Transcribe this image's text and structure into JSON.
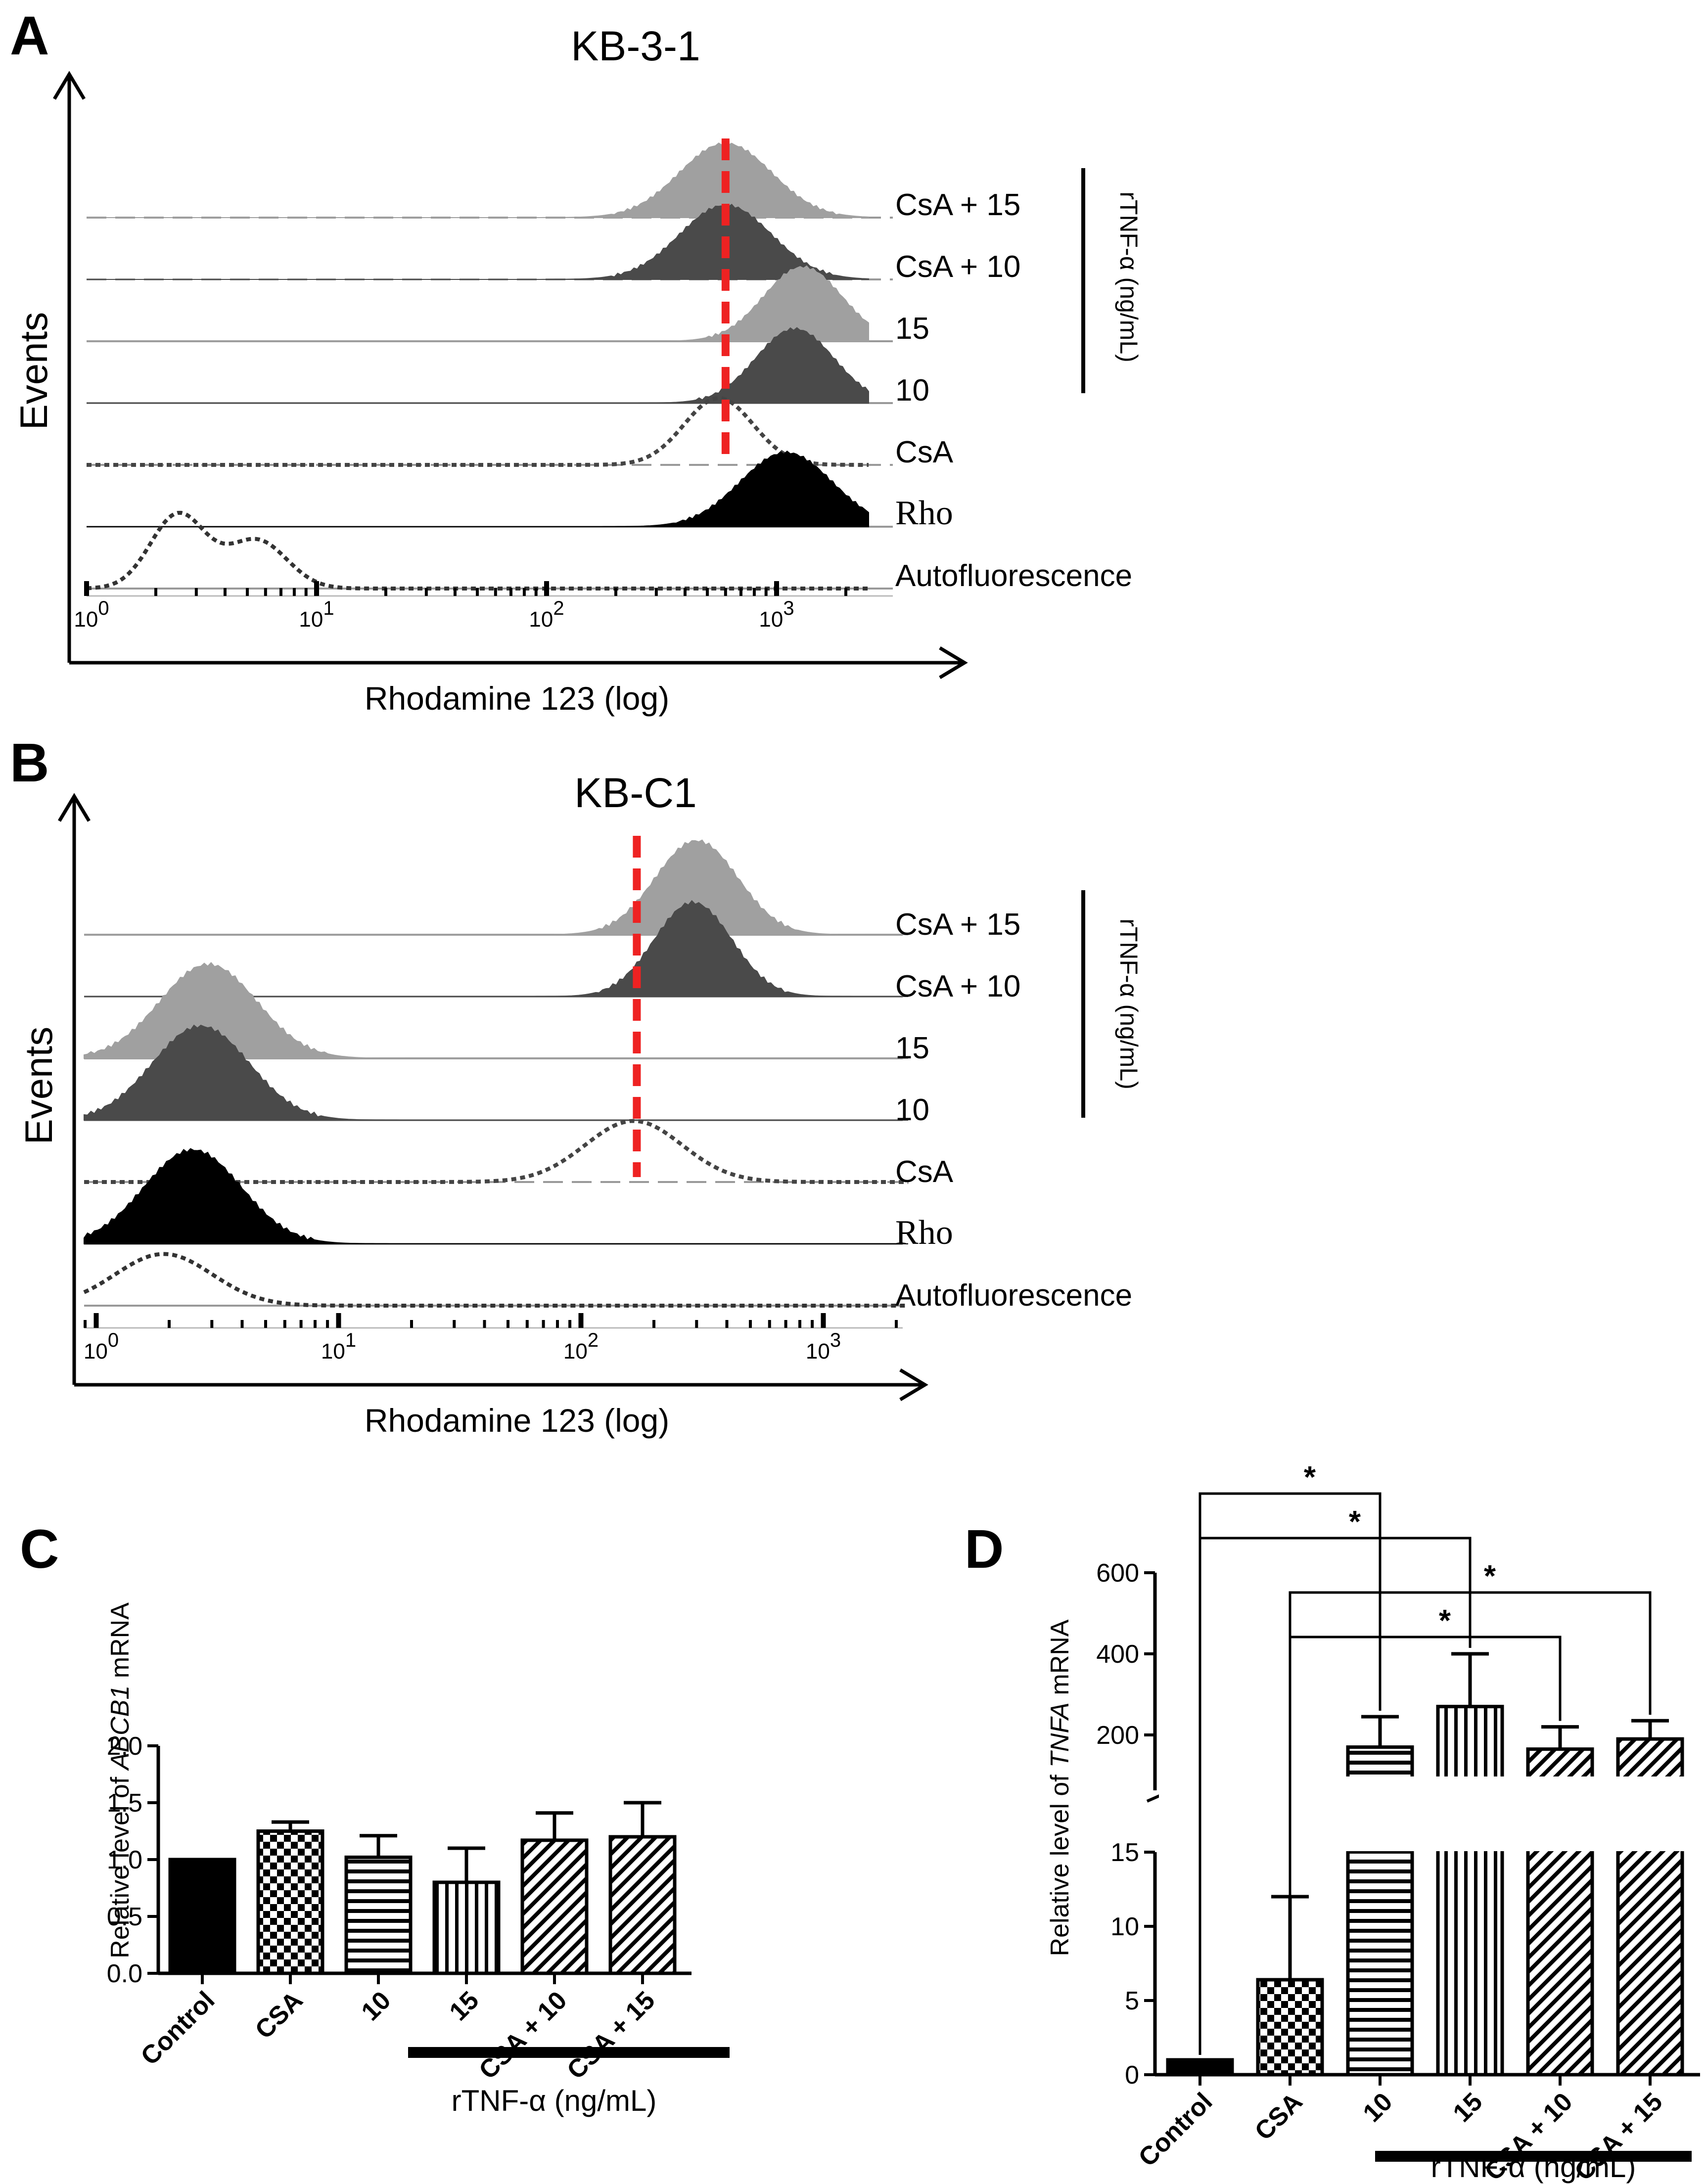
{
  "chart_data": [
    {
      "panel": "A",
      "type": "histogram",
      "title": "KB-3-1",
      "ylabel": "Events",
      "xlabel": "Rhodamine 123 (log)",
      "x_ticks": [
        {
          "base": "10",
          "exp": "0",
          "value": 1
        },
        {
          "base": "10",
          "exp": "1",
          "value": 10
        },
        {
          "base": "10",
          "exp": "2",
          "value": 100
        },
        {
          "base": "10",
          "exp": "3",
          "value": 1000
        }
      ],
      "reference_line_value": 600,
      "reference_color": "#ee2222",
      "group_label": "rTNF-α (ng/mL)",
      "traces": [
        {
          "label": "CsA + 15",
          "style": "fill",
          "color": "#a0a0a0",
          "baseline_dash": true,
          "peaks": [
            {
              "center": 600,
              "width": 0.2,
              "height": 1.0
            }
          ]
        },
        {
          "label": "CsA + 10",
          "style": "fill",
          "color": "#4a4a4a",
          "baseline_dash": true,
          "peaks": [
            {
              "center": 600,
              "width": 0.2,
              "height": 1.0
            }
          ]
        },
        {
          "label": "15",
          "style": "fill",
          "color": "#a0a0a0",
          "baseline_dash": false,
          "peaks": [
            {
              "center": 1300,
              "width": 0.17,
              "height": 1.0
            }
          ]
        },
        {
          "label": "10",
          "style": "fill",
          "color": "#4a4a4a",
          "baseline_dash": false,
          "peaks": [
            {
              "center": 1200,
              "width": 0.17,
              "height": 1.0
            }
          ]
        },
        {
          "label": "CsA",
          "style": "dotted",
          "color": "#444444",
          "baseline_dash": true,
          "peaks": [
            {
              "center": 560,
              "width": 0.15,
              "height": 0.9
            }
          ]
        },
        {
          "label": "Rho",
          "style": "fill",
          "color": "#000000",
          "baseline_dash": false,
          "serif": true,
          "peaks": [
            {
              "center": 1100,
              "width": 0.2,
              "height": 1.0
            }
          ]
        },
        {
          "label": "Autofluorescence",
          "style": "dotted",
          "color": "#333333",
          "baseline_dash": false,
          "peaks": [
            {
              "center": 2.5,
              "width": 0.12,
              "height": 1.0
            },
            {
              "center": 5.5,
              "width": 0.13,
              "height": 0.65
            }
          ]
        }
      ]
    },
    {
      "panel": "B",
      "type": "histogram",
      "title": "KB-C1",
      "ylabel": "Events",
      "xlabel": "Rhodamine 123 (log)",
      "x_ticks": [
        {
          "base": "10",
          "exp": "0",
          "value": 1
        },
        {
          "base": "10",
          "exp": "1",
          "value": 10
        },
        {
          "base": "10",
          "exp": "2",
          "value": 100
        },
        {
          "base": "10",
          "exp": "3",
          "value": 1000
        }
      ],
      "reference_line_value": 170,
      "reference_color": "#ee2222",
      "group_label": "rTNF-α (ng/mL)",
      "traces": [
        {
          "label": "CsA + 15",
          "style": "fill",
          "color": "#a0a0a0",
          "baseline_dash": false,
          "peaks": [
            {
              "center": 300,
              "width": 0.17,
              "height": 1.0
            }
          ]
        },
        {
          "label": "CsA + 10",
          "style": "fill",
          "color": "#4a4a4a",
          "baseline_dash": false,
          "peaks": [
            {
              "center": 290,
              "width": 0.16,
              "height": 1.0
            }
          ]
        },
        {
          "label": "15",
          "style": "fill",
          "color": "#a0a0a0",
          "baseline_dash": false,
          "peaks": [
            {
              "center": 2.9,
              "width": 0.2,
              "height": 1.0
            }
          ]
        },
        {
          "label": "10",
          "style": "fill",
          "color": "#4a4a4a",
          "baseline_dash": false,
          "peaks": [
            {
              "center": 2.7,
              "width": 0.2,
              "height": 1.0
            }
          ]
        },
        {
          "label": "CsA",
          "style": "dotted",
          "color": "#444444",
          "baseline_dash": true,
          "peaks": [
            {
              "center": 165,
              "width": 0.2,
              "height": 0.65
            }
          ]
        },
        {
          "label": "Rho",
          "style": "fill",
          "color": "#000000",
          "baseline_dash": false,
          "serif": true,
          "peaks": [
            {
              "center": 2.5,
              "width": 0.2,
              "height": 1.0
            }
          ]
        },
        {
          "label": "Autofluorescence",
          "style": "dotted",
          "color": "#333333",
          "baseline_dash": false,
          "peaks": [
            {
              "center": 1.9,
              "width": 0.2,
              "height": 0.55
            }
          ]
        }
      ]
    },
    {
      "panel": "C",
      "type": "bar",
      "ylabel_pre": "Relative level of ",
      "ylabel_gene": "ABCB1",
      "ylabel_post": " mRNA",
      "ylim": [
        0,
        2.0
      ],
      "y_ticks": [
        "0.0",
        "0.5",
        "1.0",
        "1.5",
        "2.0"
      ],
      "categories": [
        "Control",
        "CSA",
        "10",
        "15",
        "CSA + 10",
        "CSA + 15"
      ],
      "values": [
        1.0,
        1.25,
        1.02,
        0.8,
        1.17,
        1.2
      ],
      "errors": [
        0,
        0.08,
        0.19,
        0.3,
        0.24,
        0.3
      ],
      "patterns": [
        "solid",
        "checker",
        "hlines",
        "vlines",
        "diag",
        "diag"
      ],
      "group_label": "rTNF-α (ng/mL)"
    },
    {
      "panel": "D",
      "type": "bar",
      "ylabel_pre": "Relative level of ",
      "ylabel_gene": "TNFA",
      "ylabel_post": " mRNA",
      "broken_axis": true,
      "lower_range": [
        0,
        15
      ],
      "upper_range": [
        100,
        600
      ],
      "lower_ticks": [
        "0",
        "5",
        "10",
        "15"
      ],
      "upper_ticks": [
        "200",
        "400",
        "600"
      ],
      "categories": [
        "Control",
        "CSA",
        "10",
        "15",
        "CSA + 10",
        "CSA + 15"
      ],
      "values": [
        1.0,
        6.4,
        170,
        270,
        165,
        190
      ],
      "errors": [
        0,
        5.6,
        75,
        130,
        55,
        45
      ],
      "patterns": [
        "solid",
        "checker",
        "hlines",
        "vlines",
        "diag",
        "diag"
      ],
      "significance": [
        {
          "from": "Control",
          "to": "10",
          "label": "*"
        },
        {
          "from": "Control",
          "to": "15",
          "label": "*"
        },
        {
          "from": "CSA",
          "to": "CSA + 15",
          "label": "*"
        },
        {
          "from": "CSA",
          "to": "CSA + 10",
          "label": "*"
        }
      ],
      "group_label": "rTNF-α (ng/mL)"
    }
  ]
}
